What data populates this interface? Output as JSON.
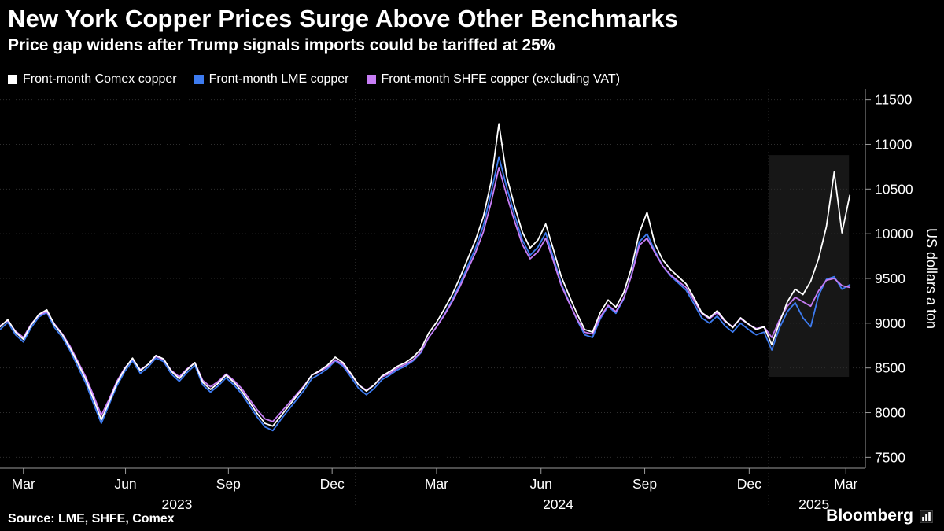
{
  "footer": {
    "source": "Source: LME, SHFE, Comex",
    "brand": "Bloomberg"
  },
  "chart_data": {
    "type": "line",
    "title": "New York Copper Prices Surge Above Other Benchmarks",
    "subtitle": "Price gap widens after Trump signals imports could be tariffed at 25%",
    "ylabel": "US dollars a ton",
    "ylim": [
      7380,
      11620
    ],
    "y_ticks": [
      7500,
      8000,
      8500,
      9000,
      9500,
      10000,
      10500,
      11000,
      11500
    ],
    "x_unit": "weeks, Feb 2023 - Mar 2025",
    "x_max": 111,
    "grid": "horizontal-dotted",
    "legend_position": "top",
    "x_ticks": [
      {
        "label": "Mar",
        "x": 3.0
      },
      {
        "label": "Jun",
        "x": 16.1
      },
      {
        "label": "Sep",
        "x": 29.3
      },
      {
        "label": "Dec",
        "x": 42.6
      },
      {
        "label": "Mar",
        "x": 56.0
      },
      {
        "label": "Jun",
        "x": 69.4
      },
      {
        "label": "Sep",
        "x": 82.7
      },
      {
        "label": "Dec",
        "x": 96.1
      },
      {
        "label": "Mar",
        "x": 108.5
      }
    ],
    "year_labels": [
      {
        "label": "2023",
        "x": 22.7
      },
      {
        "label": "2024",
        "x": 71.6
      },
      {
        "label": "2025",
        "x": 104.4
      }
    ],
    "year_boundaries": [
      45.6,
      98.6
    ],
    "highlight_region": {
      "x0": 98.6,
      "x1": 108.9,
      "y0": 8400,
      "y1": 10880,
      "fill": "rgba(255,255,255,0.09)"
    },
    "colors": {
      "background": "#000000",
      "grid": "#2e2e2e",
      "axis": "#9a9a9a",
      "text": "#ffffff"
    },
    "series": [
      {
        "name": "Front-month Comex copper",
        "color": "#FFFFFF",
        "values": [
          8960,
          9040,
          8900,
          8820,
          8980,
          9100,
          9150,
          8980,
          8870,
          8720,
          8550,
          8370,
          8150,
          7920,
          8120,
          8330,
          8490,
          8610,
          8470,
          8540,
          8640,
          8600,
          8460,
          8380,
          8480,
          8560,
          8340,
          8260,
          8330,
          8420,
          8340,
          8240,
          8120,
          7990,
          7880,
          7850,
          7960,
          8070,
          8180,
          8290,
          8420,
          8470,
          8530,
          8620,
          8560,
          8440,
          8310,
          8240,
          8310,
          8410,
          8460,
          8520,
          8560,
          8620,
          8710,
          8890,
          9010,
          9160,
          9320,
          9510,
          9720,
          9930,
          10190,
          10580,
          11230,
          10640,
          10310,
          10020,
          9840,
          9930,
          10110,
          9820,
          9520,
          9310,
          9110,
          8930,
          8900,
          9120,
          9260,
          9180,
          9340,
          9620,
          10010,
          10240,
          9890,
          9710,
          9600,
          9520,
          9440,
          9290,
          9120,
          9060,
          9140,
          9030,
          8950,
          9060,
          8990,
          8930,
          8960,
          8760,
          9010,
          9240,
          9380,
          9320,
          9470,
          9720,
          10080,
          10690,
          10010,
          10430
        ]
      },
      {
        "name": "Front-month LME copper",
        "color": "#3D7BF0",
        "values": [
          8930,
          9010,
          8870,
          8790,
          8950,
          9070,
          9120,
          8950,
          8840,
          8690,
          8510,
          8330,
          8100,
          7880,
          8090,
          8300,
          8460,
          8580,
          8440,
          8510,
          8610,
          8570,
          8430,
          8350,
          8450,
          8530,
          8310,
          8230,
          8300,
          8390,
          8310,
          8210,
          8080,
          7950,
          7840,
          7800,
          7920,
          8030,
          8140,
          8250,
          8380,
          8430,
          8490,
          8580,
          8520,
          8400,
          8270,
          8200,
          8270,
          8370,
          8420,
          8480,
          8520,
          8580,
          8670,
          8840,
          8960,
          9100,
          9260,
          9440,
          9640,
          9840,
          10090,
          10460,
          10860,
          10520,
          10210,
          9930,
          9760,
          9850,
          10010,
          9730,
          9440,
          9240,
          9040,
          8870,
          8840,
          9050,
          9190,
          9110,
          9270,
          9540,
          9910,
          10000,
          9810,
          9640,
          9530,
          9450,
          9370,
          9220,
          9060,
          9000,
          9080,
          8970,
          8900,
          9000,
          8930,
          8870,
          8900,
          8700,
          8950,
          9130,
          9230,
          9060,
          8960,
          9310,
          9490,
          9520,
          9380,
          9430
        ]
      },
      {
        "name": "Front-month SHFE copper (excluding VAT)",
        "color": "#C77DF5",
        "values": [
          8970,
          9030,
          8910,
          8840,
          8990,
          9090,
          9130,
          8990,
          8880,
          8740,
          8570,
          8400,
          8190,
          7970,
          8150,
          8350,
          8500,
          8600,
          8480,
          8540,
          8630,
          8590,
          8470,
          8400,
          8490,
          8560,
          8360,
          8290,
          8350,
          8430,
          8360,
          8270,
          8150,
          8030,
          7930,
          7900,
          8000,
          8100,
          8200,
          8300,
          8420,
          8460,
          8510,
          8590,
          8540,
          8430,
          8310,
          8250,
          8310,
          8400,
          8440,
          8500,
          8540,
          8590,
          8680,
          8840,
          8960,
          9090,
          9240,
          9410,
          9600,
          9790,
          10020,
          10350,
          10740,
          10430,
          10140,
          9880,
          9720,
          9800,
          9950,
          9690,
          9420,
          9230,
          9050,
          8900,
          8880,
          9070,
          9200,
          9130,
          9280,
          9530,
          9870,
          9950,
          9790,
          9640,
          9540,
          9470,
          9400,
          9260,
          9110,
          9050,
          9120,
          9020,
          8960,
          9050,
          8990,
          8940,
          8960,
          8840,
          9040,
          9190,
          9290,
          9240,
          9190,
          9360,
          9480,
          9500,
          9420,
          9400
        ]
      }
    ]
  }
}
